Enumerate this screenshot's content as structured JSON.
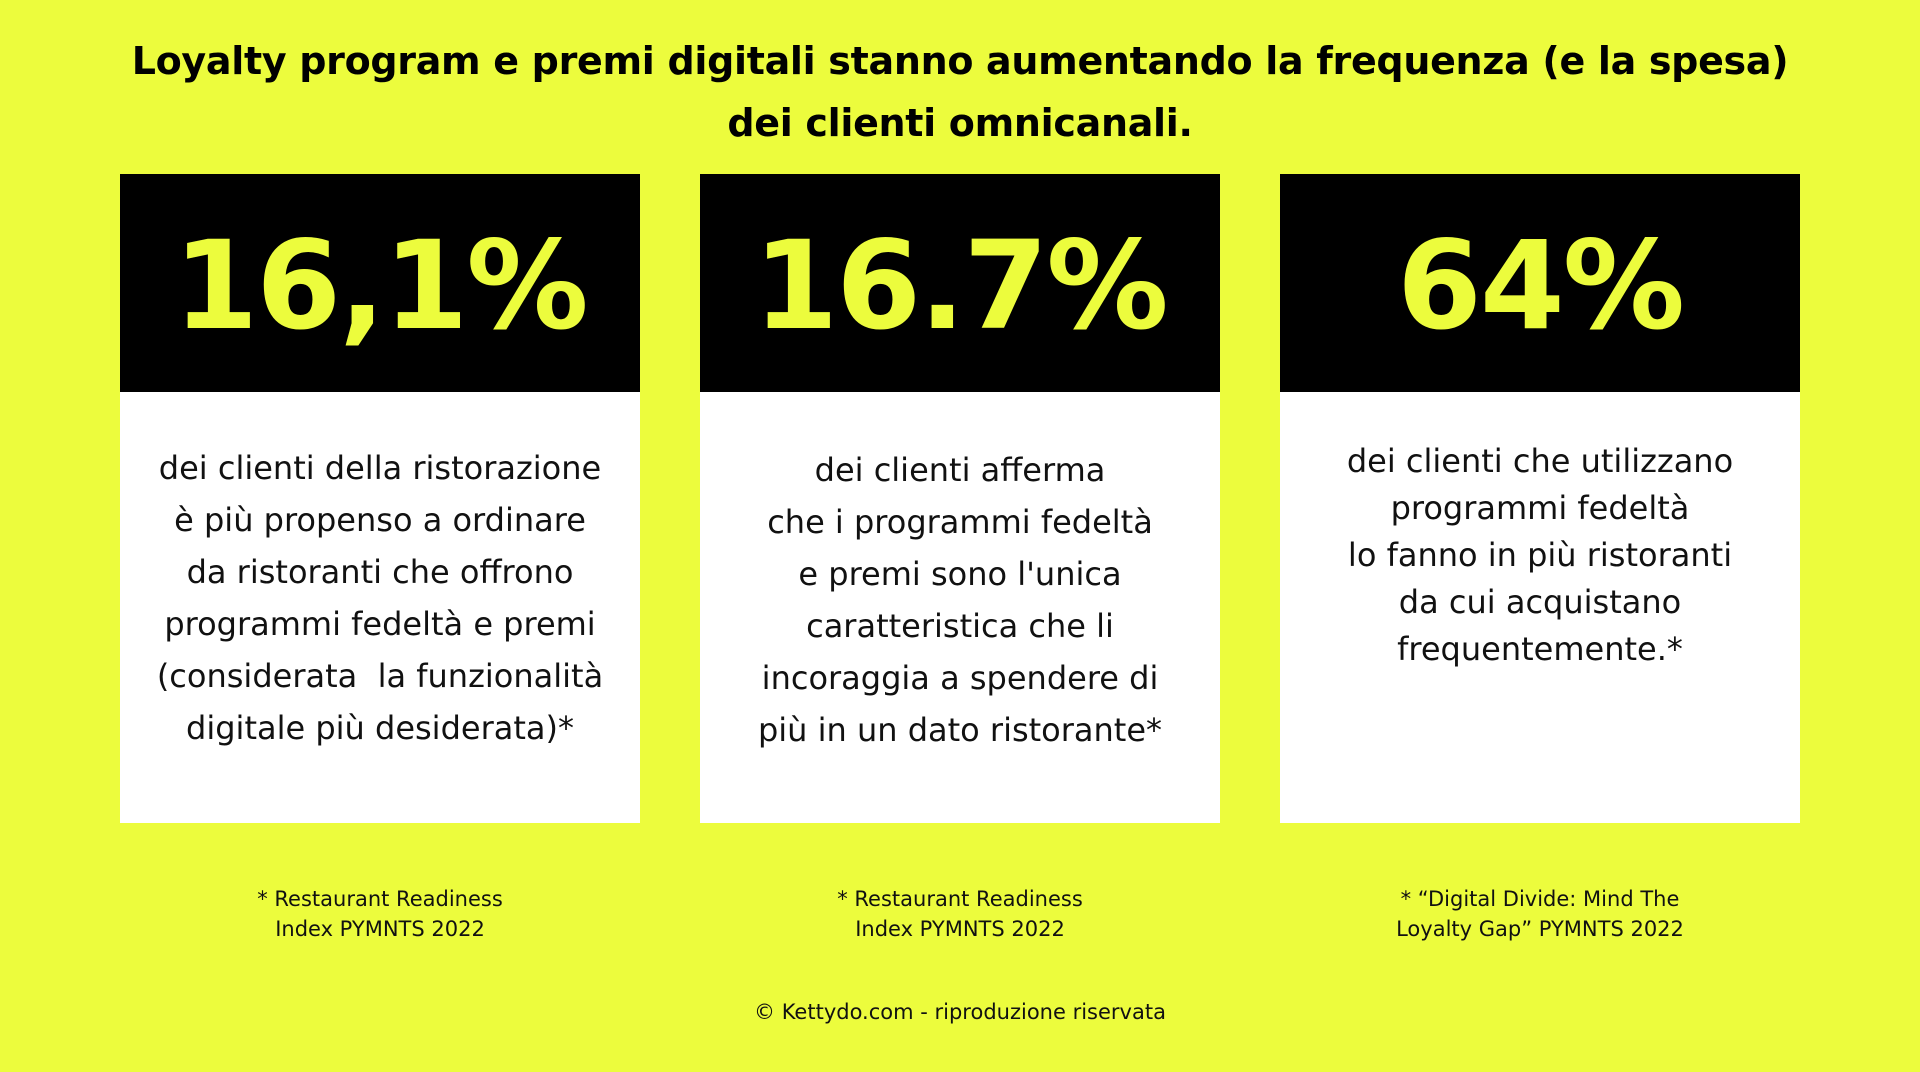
{
  "title": {
    "line1": "Loyalty program e premi digitali stanno aumentando la frequenza (e la spesa)",
    "line2": "dei clienti omnicanali."
  },
  "cards": [
    {
      "stat": "16,1%",
      "lines": [
        "dei clienti della ristorazione",
        "è più propenso a ordinare",
        "da ristoranti che offrono",
        "programmi fedeltà e premi",
        "(considerata  la funzionalità",
        "digitale più desiderata)*"
      ],
      "source": [
        "* Restaurant Readiness",
        "Index PYMNTS 2022"
      ]
    },
    {
      "stat": "16.7%",
      "lines": [
        "dei clienti afferma",
        "che i programmi fedeltà",
        "e premi sono l'unica",
        "caratteristica che li",
        "incoraggia a spendere di",
        "più in un dato ristorante*"
      ],
      "source": [
        "* Restaurant Readiness",
        "Index PYMNTS 2022"
      ]
    },
    {
      "stat": "64%",
      "lines": [
        "dei clienti che utilizzano",
        "programmi fedeltà",
        "lo fanno in più ristoranti",
        "da cui acquistano",
        "frequentemente.*"
      ],
      "source": [
        "* “Digital Divide: Mind The",
        "Loyalty Gap” PYMNTS 2022"
      ]
    }
  ],
  "footer": "© Kettydo.com - riproduzione riservata",
  "colors": {
    "background": "#ecfc3d",
    "card_header": "#000000",
    "stat_text": "#ecfc3d",
    "card_body": "#ffffff"
  }
}
